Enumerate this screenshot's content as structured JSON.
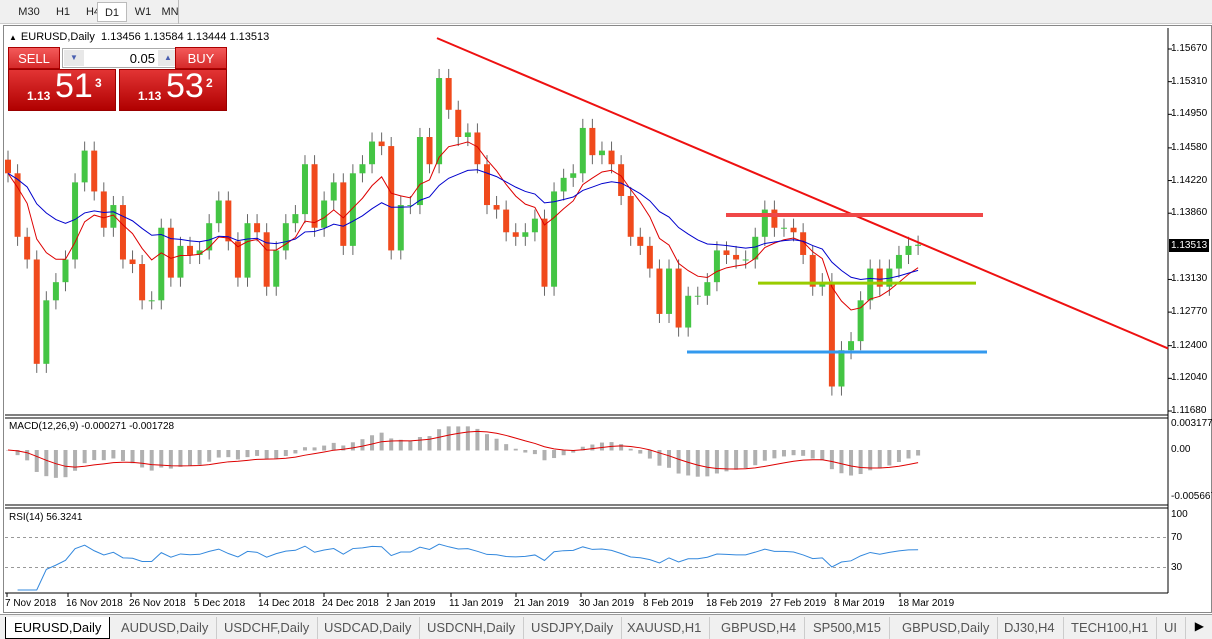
{
  "timeframes": [
    {
      "label": "5"
    },
    {
      "label": "M30"
    },
    {
      "label": "H1"
    },
    {
      "label": "H4"
    },
    {
      "label": "D1",
      "active": true
    },
    {
      "label": "W1"
    },
    {
      "label": "MN"
    }
  ],
  "chart": {
    "title": "EURUSD,Daily",
    "ohlc_text": "1.13456 1.13584 1.13444 1.13513"
  },
  "trade_panel": {
    "sell_label": "SELL",
    "buy_label": "BUY",
    "lot": "0.05",
    "sell_prefix": "1.13",
    "sell_main": "51",
    "sell_sup": "3",
    "buy_prefix": "1.13",
    "buy_main": "53",
    "buy_sup": "2"
  },
  "price_axis": [
    "1.15670",
    "1.15310",
    "1.14950",
    "1.14580",
    "1.14220",
    "1.13860",
    "1.13130",
    "1.12770",
    "1.12400",
    "1.12040",
    "1.11680"
  ],
  "current_price": "1.13513",
  "macd": {
    "label": "MACD(12,26,9) -0.000271 -0.001728",
    "axis": [
      "0.003177",
      "0.00",
      "-0.005667"
    ]
  },
  "rsi": {
    "label": "RSI(14) 56.3241",
    "axis": [
      "100",
      "70",
      "30",
      "0"
    ]
  },
  "dates": [
    "7 Nov 2018",
    "16 Nov 2018",
    "26 Nov 2018",
    "5 Dec 2018",
    "14 Dec 2018",
    "24 Dec 2018",
    "2 Jan 2019",
    "11 Jan 2019",
    "21 Jan 2019",
    "30 Jan 2019",
    "8 Feb 2019",
    "18 Feb 2019",
    "27 Feb 2019",
    "8 Mar 2019",
    "18 Mar 2019"
  ],
  "tabs": [
    {
      "label": "EURUSD,Daily",
      "active": true
    },
    {
      "label": "AUDUSD,Daily"
    },
    {
      "label": "USDCHF,Daily"
    },
    {
      "label": "USDCAD,Daily"
    },
    {
      "label": "USDCNH,Daily"
    },
    {
      "label": "USDJPY,Daily"
    },
    {
      "label": "XAUUSD,H1"
    },
    {
      "label": "GBPUSD,H4"
    },
    {
      "label": "SP500,M15"
    },
    {
      "label": "GBPUSD,Daily"
    },
    {
      "label": "DJ30,H4"
    },
    {
      "label": "TECH100,H1"
    },
    {
      "label": "UI"
    }
  ],
  "colors": {
    "bull": "#44c544",
    "bear": "#f04a1c",
    "trendline": "#ee1111",
    "resistance": "#f04848",
    "support_green": "#99cc00",
    "support_blue": "#3399ee",
    "ma_fast": "#dd0000",
    "ma_slow": "#0000cc",
    "macd_hist": "#b0b0b0",
    "rsi_line": "#3388dd"
  },
  "chart_data": {
    "type": "candlestick",
    "symbol": "EURUSD",
    "timeframe": "Daily",
    "price_range": [
      1.1168,
      1.1567
    ],
    "closes": [
      1.143,
      1.136,
      1.1335,
      1.122,
      1.129,
      1.131,
      1.1335,
      1.142,
      1.1455,
      1.141,
      1.137,
      1.1395,
      1.1335,
      1.133,
      1.129,
      1.129,
      1.137,
      1.1315,
      1.135,
      1.134,
      1.1345,
      1.1375,
      1.14,
      1.1355,
      1.1315,
      1.1375,
      1.1365,
      1.1305,
      1.1345,
      1.1375,
      1.1385,
      1.144,
      1.137,
      1.14,
      1.142,
      1.135,
      1.143,
      1.144,
      1.1465,
      1.146,
      1.1345,
      1.1395,
      1.1395,
      1.147,
      1.144,
      1.1535,
      1.15,
      1.147,
      1.1475,
      1.144,
      1.1395,
      1.139,
      1.1365,
      1.136,
      1.1365,
      1.138,
      1.1305,
      1.141,
      1.1425,
      1.143,
      1.148,
      1.145,
      1.1455,
      1.144,
      1.1405,
      1.136,
      1.135,
      1.1325,
      1.1275,
      1.1325,
      1.126,
      1.1295,
      1.1295,
      1.131,
      1.1345,
      1.134,
      1.1335,
      1.1335,
      1.136,
      1.139,
      1.137,
      1.137,
      1.1365,
      1.134,
      1.1305,
      1.131,
      1.1195,
      1.1235,
      1.1245,
      1.129,
      1.1325,
      1.1305,
      1.1325,
      1.134,
      1.135,
      1.13513
    ],
    "lines": {
      "trendline": [
        1.1579,
        1.1237
      ],
      "resistance": 1.1384,
      "support_green": 1.1309,
      "support_blue": 1.1233
    }
  }
}
